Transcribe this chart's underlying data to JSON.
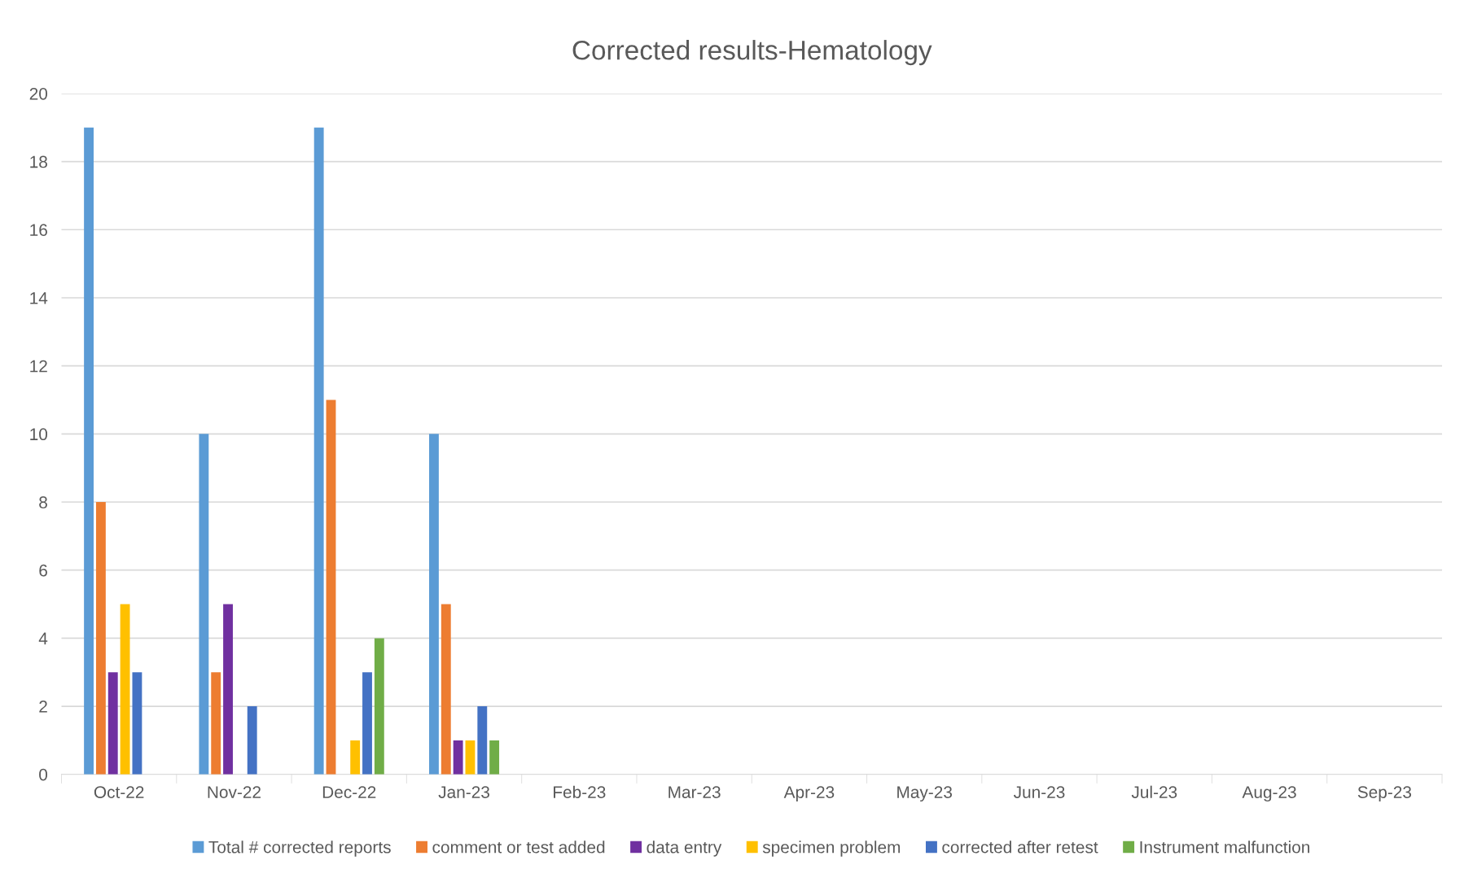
{
  "chart_data": {
    "type": "bar",
    "title": "Corrected results-Hematology",
    "categories": [
      "Oct-22",
      "Nov-22",
      "Dec-22",
      "Jan-23",
      "Feb-23",
      "Mar-23",
      "Apr-23",
      "May-23",
      "Jun-23",
      "Jul-23",
      "Aug-23",
      "Sep-23"
    ],
    "series": [
      {
        "name": "Total # corrected reports",
        "color": "#5b9bd5",
        "values": [
          19,
          10,
          19,
          10,
          null,
          null,
          null,
          null,
          null,
          null,
          null,
          null
        ]
      },
      {
        "name": "comment or test added",
        "color": "#ed7d31",
        "values": [
          8,
          3,
          11,
          5,
          null,
          null,
          null,
          null,
          null,
          null,
          null,
          null
        ]
      },
      {
        "name": "data entry",
        "color": "#7030a0",
        "values": [
          3,
          5,
          null,
          1,
          null,
          null,
          null,
          null,
          null,
          null,
          null,
          null
        ]
      },
      {
        "name": "specimen problem",
        "color": "#ffc000",
        "values": [
          5,
          null,
          1,
          1,
          null,
          null,
          null,
          null,
          null,
          null,
          null,
          null
        ]
      },
      {
        "name": "corrected after retest",
        "color": "#4472c4",
        "values": [
          3,
          2,
          3,
          2,
          null,
          null,
          null,
          null,
          null,
          null,
          null,
          null
        ]
      },
      {
        "name": "Instrument malfunction",
        "color": "#70ad47",
        "values": [
          null,
          null,
          4,
          1,
          null,
          null,
          null,
          null,
          null,
          null,
          null,
          null
        ]
      }
    ],
    "ylim": [
      0,
      20
    ],
    "yticks": [
      0,
      2,
      4,
      6,
      8,
      10,
      12,
      14,
      16,
      18,
      20
    ],
    "grid": "y",
    "legend": "bottom"
  }
}
